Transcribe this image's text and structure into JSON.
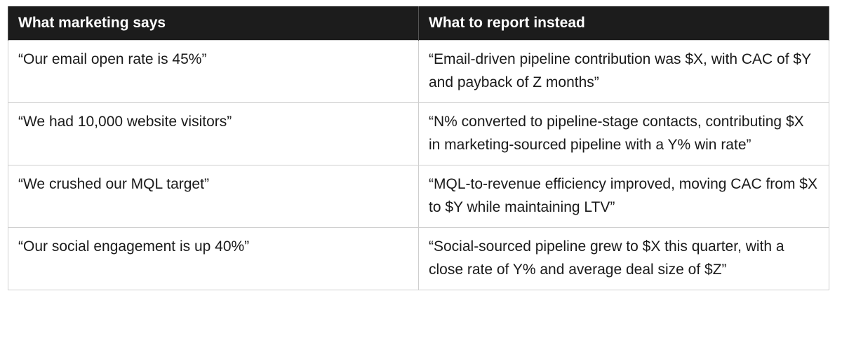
{
  "table": {
    "headers": [
      "What marketing says",
      "What to report instead"
    ],
    "rows": [
      {
        "says": "“Our email open rate is 45%”",
        "instead": "“Email-driven pipeline contribution was $X, with CAC of $Y and payback of Z months”"
      },
      {
        "says": "“We had 10,000 website visitors”",
        "instead": "“N% converted to pipeline-stage contacts, contributing $X in marketing-sourced pipeline with a Y% win rate”"
      },
      {
        "says": "“We crushed our MQL target”",
        "instead": "“MQL-to-revenue efficiency improved, moving CAC from $X to $Y while maintaining LTV”"
      },
      {
        "says": "“Our social engagement is up 40%”",
        "instead": "“Social-sourced pipeline grew to $X this quarter, with a close rate of Y% and average deal size of $Z”"
      }
    ]
  }
}
